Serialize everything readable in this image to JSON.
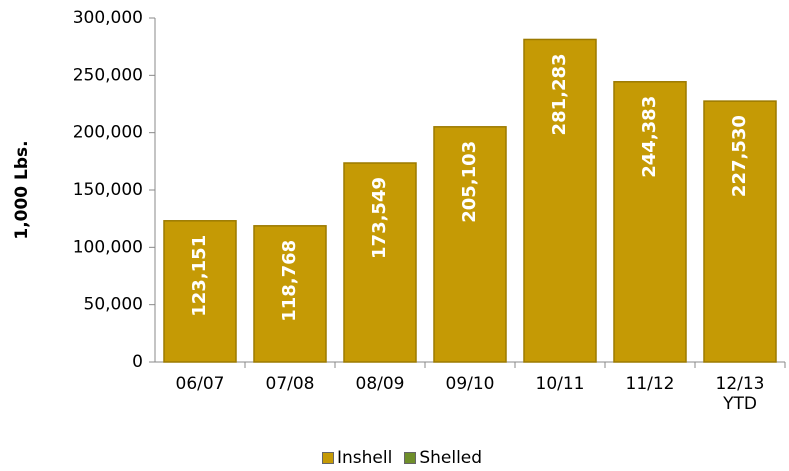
{
  "chart_data": {
    "type": "stacked_bar",
    "y_axis_label": "1,000 Lbs.",
    "categories": [
      "06/07",
      "07/08",
      "08/09",
      "09/10",
      "10/11",
      "11/12",
      "12/13 YTD"
    ],
    "series": [
      {
        "name": "Inshell",
        "color": "#c59a05",
        "values": [
          123151,
          118768,
          173549,
          205103,
          281283,
          244383,
          227530
        ],
        "value_labels": [
          "123,151",
          "118,768",
          "173,549",
          "205,103",
          "281,283",
          "244,383",
          "227,530"
        ]
      },
      {
        "name": "Shelled",
        "color": "#6f8f2a",
        "values": [
          null,
          null,
          null,
          null,
          null,
          null,
          null
        ]
      }
    ],
    "ylim": [
      0,
      300000
    ],
    "yticks": [
      0,
      {
        "value": 50000,
        "label": "50,000"
      },
      {
        "value": 100000,
        "label": "100,000"
      },
      {
        "value": 150000,
        "label": "150,000"
      },
      {
        "value": 200000,
        "label": "200,000"
      },
      {
        "value": 250000,
        "label": "250,000"
      },
      {
        "value": 300000,
        "label": "300,000"
      }
    ],
    "legend": "bottom"
  }
}
